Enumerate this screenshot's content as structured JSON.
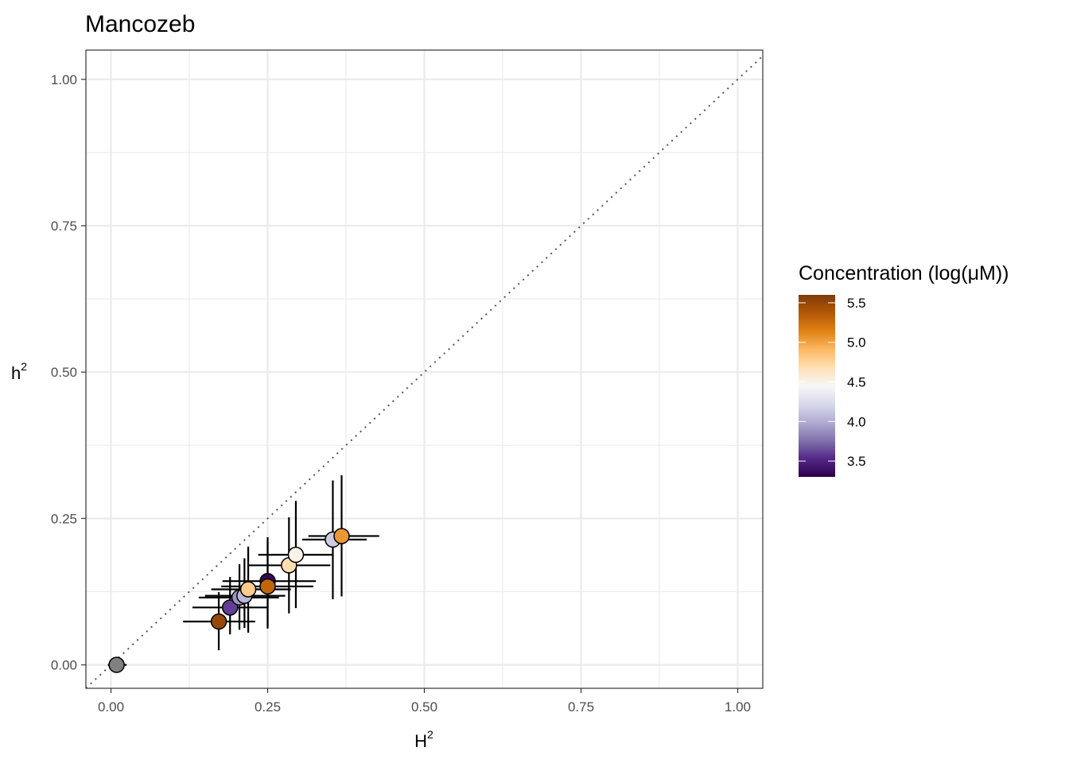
{
  "chart_data": {
    "type": "scatter",
    "title": "Mancozeb",
    "xlabel": "H",
    "ylabel": "h",
    "label_superscript": "2",
    "xlim": [
      -0.04,
      1.04
    ],
    "ylim": [
      -0.04,
      1.05
    ],
    "x_ticks": [
      0.0,
      0.25,
      0.5,
      0.75,
      1.0
    ],
    "x_tick_labels": [
      "0.00",
      "0.25",
      "0.50",
      "0.75",
      "1.00"
    ],
    "y_ticks": [
      0.0,
      0.25,
      0.5,
      0.75,
      1.0
    ],
    "y_tick_labels": [
      "0.00",
      "0.25",
      "0.50",
      "0.75",
      "1.00"
    ],
    "reference_line": {
      "slope": 1,
      "intercept": 0,
      "style": "dotted"
    },
    "legend": {
      "title": "Concentration (log(μM))",
      "position": "right",
      "min": 3.3,
      "max": 5.6,
      "breaks": [
        3.5,
        4.0,
        4.5,
        5.0,
        5.5
      ],
      "break_labels": [
        "3.5",
        "4.0",
        "4.5",
        "5.0",
        "5.5"
      ],
      "colors_low_to_high": [
        "#2d004b",
        "#542788",
        "#8073ac",
        "#b2abd2",
        "#d8daeb",
        "#f7f7f7",
        "#fee0b6",
        "#fdb863",
        "#e08214",
        "#b35806",
        "#7f3b08"
      ]
    },
    "points": [
      {
        "x": 0.009,
        "y": 0.0,
        "x_low": -0.005,
        "x_high": 0.025,
        "y_low": -0.005,
        "y_high": 0.005,
        "concentration": null,
        "fill": "#808080"
      },
      {
        "x": 0.172,
        "y": 0.074,
        "x_low": 0.115,
        "x_high": 0.23,
        "y_low": 0.025,
        "y_high": 0.124,
        "concentration": 5.5,
        "fill": null
      },
      {
        "x": 0.19,
        "y": 0.098,
        "x_low": 0.13,
        "x_high": 0.25,
        "y_low": 0.052,
        "y_high": 0.15,
        "concentration": 3.6,
        "fill": null
      },
      {
        "x": 0.205,
        "y": 0.115,
        "x_low": 0.14,
        "x_high": 0.268,
        "y_low": 0.06,
        "y_high": 0.172,
        "concentration": 3.9,
        "fill": null
      },
      {
        "x": 0.213,
        "y": 0.118,
        "x_low": 0.15,
        "x_high": 0.278,
        "y_low": 0.063,
        "y_high": 0.182,
        "concentration": 4.05,
        "fill": null
      },
      {
        "x": 0.219,
        "y": 0.129,
        "x_low": 0.16,
        "x_high": 0.287,
        "y_low": 0.055,
        "y_high": 0.202,
        "concentration": 4.8,
        "fill": null
      },
      {
        "x": 0.25,
        "y": 0.143,
        "x_low": 0.178,
        "x_high": 0.327,
        "y_low": 0.066,
        "y_high": 0.218,
        "concentration": 3.35,
        "fill": null
      },
      {
        "x": 0.25,
        "y": 0.134,
        "x_low": 0.176,
        "x_high": 0.323,
        "y_low": 0.062,
        "y_high": 0.212,
        "concentration": 5.3,
        "fill": null
      },
      {
        "x": 0.284,
        "y": 0.17,
        "x_low": 0.218,
        "x_high": 0.35,
        "y_low": 0.088,
        "y_high": 0.252,
        "concentration": 4.7,
        "fill": null
      },
      {
        "x": 0.295,
        "y": 0.188,
        "x_low": 0.235,
        "x_high": 0.355,
        "y_low": 0.097,
        "y_high": 0.28,
        "concentration": 4.5,
        "fill": null
      },
      {
        "x": 0.354,
        "y": 0.214,
        "x_low": 0.305,
        "x_high": 0.408,
        "y_low": 0.112,
        "y_high": 0.315,
        "concentration": 4.15,
        "fill": null
      },
      {
        "x": 0.368,
        "y": 0.22,
        "x_low": 0.315,
        "x_high": 0.428,
        "y_low": 0.117,
        "y_high": 0.324,
        "concentration": 5.05,
        "fill": null
      }
    ]
  }
}
